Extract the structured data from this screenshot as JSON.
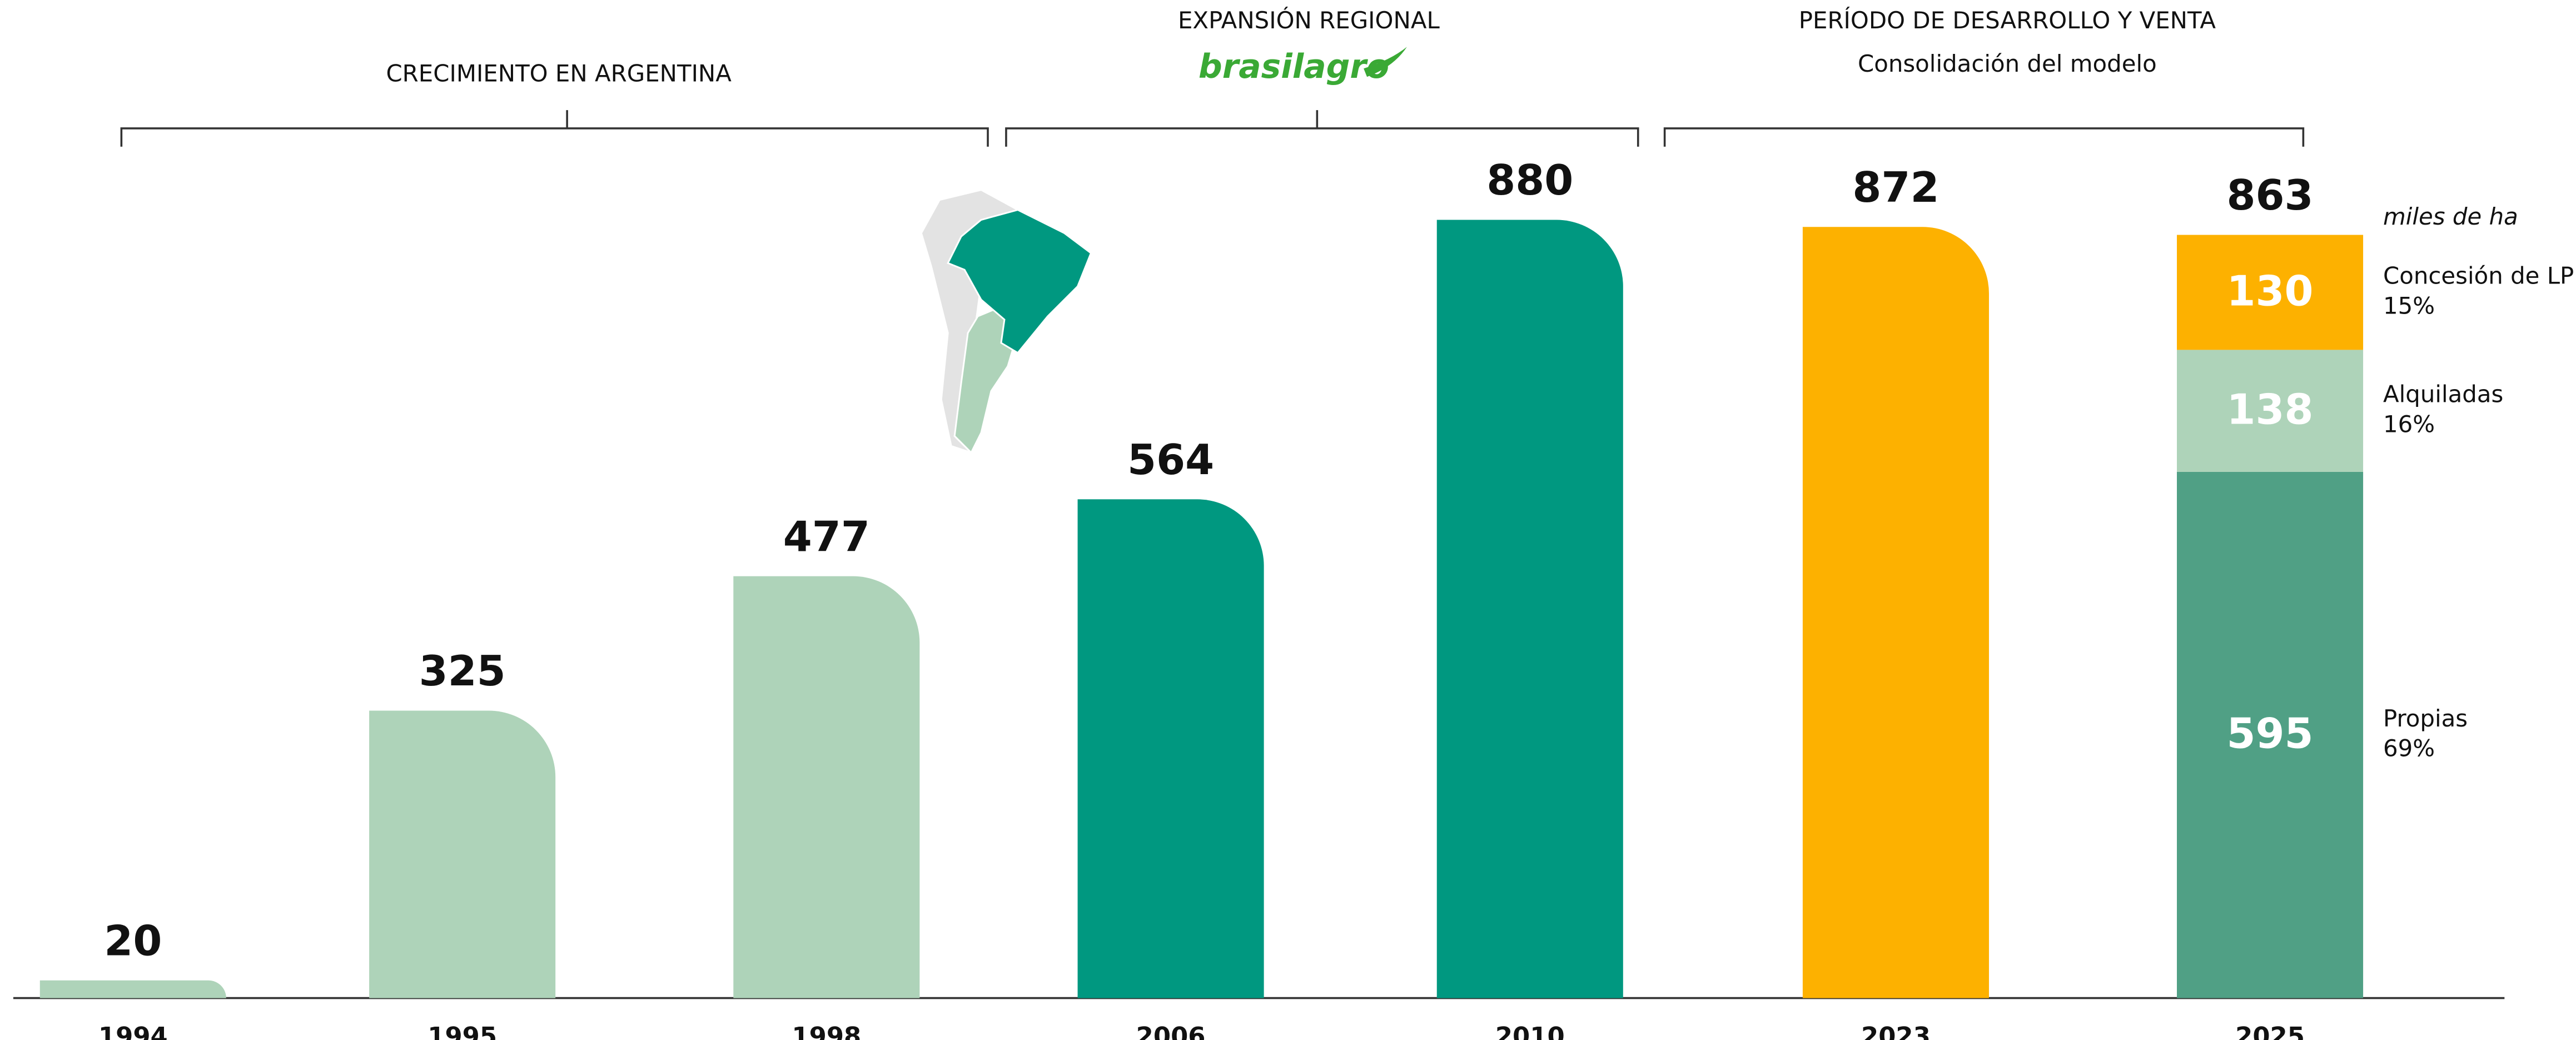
{
  "chart_data": {
    "type": "bar",
    "categories": [
      "1994",
      "1995",
      "1998",
      "2006",
      "2010",
      "2023",
      "2025"
    ],
    "values": [
      20,
      325,
      477,
      564,
      880,
      872,
      863
    ],
    "colors": [
      "#aed3b9",
      "#aed3b9",
      "#aed3b9",
      "#009880",
      "#009880",
      "#fdb100",
      "#50a085"
    ],
    "ylim": [
      0,
      880
    ],
    "unit_label": "miles de ha",
    "groups": [
      {
        "title": "CRECIMIENTO EN ARGENTINA"
      },
      {
        "title": "EXPANSIÓN REGIONAL",
        "logo": "brasilagro"
      },
      {
        "title": "PERÍODO DE DESARROLLO Y VENTA",
        "subtitle": "Consolidación del modelo"
      }
    ],
    "breakdown": {
      "category_index": 6,
      "segments": [
        {
          "name": "Propias",
          "share": "69%",
          "value": 595,
          "color": "#50a085"
        },
        {
          "name": "Alquiladas",
          "share": "16%",
          "value": 138,
          "color": "#aed3b9"
        },
        {
          "name": "Concesión de LP",
          "share": "15%",
          "value": 130,
          "color": "#fdb100"
        }
      ]
    }
  }
}
